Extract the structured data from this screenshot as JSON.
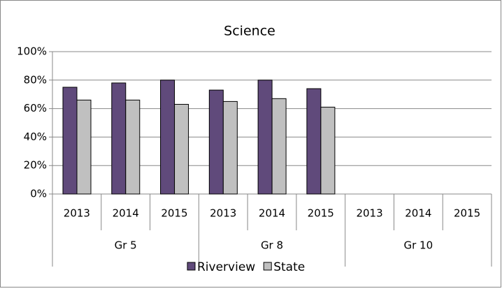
{
  "chart_data": {
    "type": "bar",
    "title": "Science",
    "categories": [
      "2013",
      "2014",
      "2015",
      "2013",
      "2014",
      "2015",
      "2013",
      "2014",
      "2015"
    ],
    "groups": [
      "Gr 5",
      "Gr 8",
      "Gr 10"
    ],
    "series": [
      {
        "name": "Riverview",
        "color": "#604a7b",
        "values": [
          75,
          78,
          80,
          73,
          80,
          74,
          null,
          null,
          null
        ]
      },
      {
        "name": "State",
        "color": "#c0c0c0",
        "values": [
          66,
          66,
          63,
          65,
          67,
          61,
          null,
          null,
          null
        ]
      }
    ],
    "ylim": [
      0,
      100
    ],
    "yticks": [
      {
        "value": 0,
        "label": "0%"
      },
      {
        "value": 20,
        "label": "20%"
      },
      {
        "value": 40,
        "label": "40%"
      },
      {
        "value": 60,
        "label": "60%"
      },
      {
        "value": 80,
        "label": "80%"
      },
      {
        "value": 100,
        "label": "100%"
      }
    ],
    "grid": true
  }
}
